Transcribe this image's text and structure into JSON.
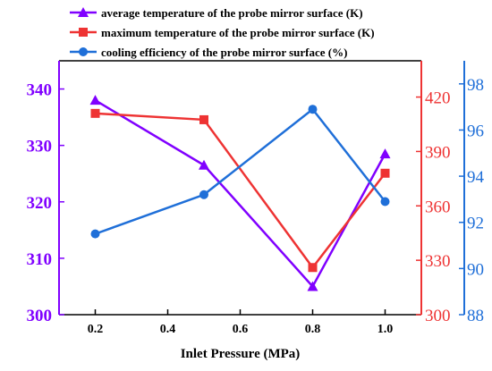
{
  "chart_data": {
    "type": "line",
    "title": "",
    "xlabel": "Inlet Pressure (MPa)",
    "x": [
      0.2,
      0.5,
      0.8,
      1.0
    ],
    "xlim": [
      0.1,
      1.1
    ],
    "xticks": [
      "0.2",
      "0.4",
      "0.6",
      "0.8",
      "1.0"
    ],
    "legend_position": "top-left",
    "grid": false,
    "series": [
      {
        "name": "average temperature of the probe mirror surface (K)",
        "axis": "left",
        "color": "#8000ff",
        "marker": "triangle",
        "values": [
          338,
          326.5,
          305,
          328.5
        ]
      },
      {
        "name": "maximum temperature of the probe mirror surface (K)",
        "axis": "right1",
        "color": "#ee3333",
        "marker": "square",
        "values": [
          411,
          407.5,
          326,
          378
        ]
      },
      {
        "name": "cooling efficiency of the probe mirror surface (%)",
        "axis": "right2",
        "color": "#1f6fd8",
        "marker": "circle",
        "values": [
          91.5,
          93.2,
          96.9,
          92.9
        ]
      }
    ],
    "axes": {
      "left": {
        "ylim": [
          300,
          345
        ],
        "ticks": [
          "300",
          "310",
          "320",
          "330",
          "340"
        ],
        "color": "#8000ff"
      },
      "right1": {
        "ylim": [
          300,
          440
        ],
        "ticks": [
          "300",
          "330",
          "360",
          "390",
          "420"
        ],
        "color": "#ee3333"
      },
      "right2": {
        "ylim": [
          88,
          99
        ],
        "ticks": [
          "88",
          "90",
          "92",
          "94",
          "96",
          "98"
        ],
        "color": "#1f6fd8"
      }
    }
  }
}
